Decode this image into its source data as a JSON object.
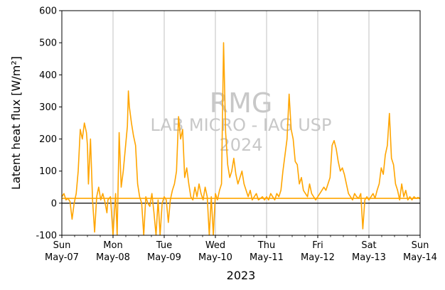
{
  "chart_data": {
    "type": "line",
    "ylabel": "Latent heat flux [W/m²]",
    "xlabel": "2023",
    "ylim": [
      -100,
      600
    ],
    "yticks": [
      -100,
      0,
      100,
      200,
      300,
      400,
      500,
      600
    ],
    "xlim": [
      0,
      7
    ],
    "x_unit": "days since 2023-05-07 00:00",
    "xticks": [
      {
        "day": "Sun",
        "date": "May-07"
      },
      {
        "day": "Mon",
        "date": "May-08"
      },
      {
        "day": "Tue",
        "date": "May-09"
      },
      {
        "day": "Wed",
        "date": "May-10"
      },
      {
        "day": "Thu",
        "date": "May-11"
      },
      {
        "day": "Fri",
        "date": "May-12"
      },
      {
        "day": "Sat",
        "date": "May-13"
      },
      {
        "day": "Sun",
        "date": "May-14"
      }
    ],
    "grid": "vertical major ticks",
    "zero_line": true,
    "watermark": {
      "line1": "RMG",
      "line2": "LAB MICRO - IAG USP",
      "line3": "2024"
    },
    "series": [
      {
        "name": "",
        "color": "#ffa500",
        "points": [
          [
            0.0,
            20
          ],
          [
            0.04,
            30
          ],
          [
            0.08,
            10
          ],
          [
            0.12,
            15
          ],
          [
            0.16,
            5
          ],
          [
            0.2,
            -50
          ],
          [
            0.24,
            0
          ],
          [
            0.28,
            30
          ],
          [
            0.32,
            100
          ],
          [
            0.36,
            230
          ],
          [
            0.4,
            200
          ],
          [
            0.44,
            250
          ],
          [
            0.48,
            220
          ],
          [
            0.5,
            180
          ],
          [
            0.52,
            60
          ],
          [
            0.56,
            200
          ],
          [
            0.6,
            10
          ],
          [
            0.64,
            -90
          ],
          [
            0.68,
            20
          ],
          [
            0.72,
            50
          ],
          [
            0.76,
            10
          ],
          [
            0.8,
            30
          ],
          [
            0.84,
            5
          ],
          [
            0.88,
            -30
          ],
          [
            0.9,
            10
          ],
          [
            0.95,
            20
          ],
          [
            1.0,
            -100
          ],
          [
            1.05,
            30
          ],
          [
            1.08,
            -100
          ],
          [
            1.12,
            220
          ],
          [
            1.16,
            50
          ],
          [
            1.2,
            100
          ],
          [
            1.24,
            170
          ],
          [
            1.28,
            240
          ],
          [
            1.3,
            350
          ],
          [
            1.32,
            300
          ],
          [
            1.36,
            250
          ],
          [
            1.4,
            210
          ],
          [
            1.44,
            180
          ],
          [
            1.48,
            60
          ],
          [
            1.52,
            20
          ],
          [
            1.56,
            0
          ],
          [
            1.6,
            -100
          ],
          [
            1.64,
            20
          ],
          [
            1.68,
            0
          ],
          [
            1.72,
            -10
          ],
          [
            1.76,
            30
          ],
          [
            1.8,
            -30
          ],
          [
            1.84,
            -100
          ],
          [
            1.88,
            10
          ],
          [
            1.92,
            -100
          ],
          [
            1.96,
            0
          ],
          [
            2.0,
            20
          ],
          [
            2.04,
            10
          ],
          [
            2.08,
            -60
          ],
          [
            2.12,
            10
          ],
          [
            2.16,
            40
          ],
          [
            2.2,
            60
          ],
          [
            2.24,
            100
          ],
          [
            2.28,
            270
          ],
          [
            2.32,
            200
          ],
          [
            2.36,
            230
          ],
          [
            2.4,
            80
          ],
          [
            2.44,
            110
          ],
          [
            2.48,
            60
          ],
          [
            2.52,
            20
          ],
          [
            2.56,
            10
          ],
          [
            2.6,
            50
          ],
          [
            2.64,
            20
          ],
          [
            2.68,
            60
          ],
          [
            2.72,
            30
          ],
          [
            2.76,
            10
          ],
          [
            2.8,
            50
          ],
          [
            2.84,
            20
          ],
          [
            2.88,
            -100
          ],
          [
            2.92,
            20
          ],
          [
            2.96,
            -100
          ],
          [
            3.0,
            30
          ],
          [
            3.04,
            10
          ],
          [
            3.08,
            40
          ],
          [
            3.12,
            60
          ],
          [
            3.16,
            500
          ],
          [
            3.2,
            220
          ],
          [
            3.24,
            120
          ],
          [
            3.28,
            80
          ],
          [
            3.32,
            100
          ],
          [
            3.36,
            140
          ],
          [
            3.4,
            90
          ],
          [
            3.44,
            60
          ],
          [
            3.48,
            80
          ],
          [
            3.52,
            100
          ],
          [
            3.56,
            60
          ],
          [
            3.6,
            40
          ],
          [
            3.64,
            20
          ],
          [
            3.68,
            40
          ],
          [
            3.72,
            10
          ],
          [
            3.76,
            20
          ],
          [
            3.8,
            30
          ],
          [
            3.84,
            10
          ],
          [
            3.88,
            15
          ],
          [
            3.92,
            20
          ],
          [
            3.96,
            10
          ],
          [
            4.0,
            20
          ],
          [
            4.04,
            10
          ],
          [
            4.08,
            30
          ],
          [
            4.12,
            20
          ],
          [
            4.16,
            10
          ],
          [
            4.2,
            30
          ],
          [
            4.24,
            20
          ],
          [
            4.28,
            40
          ],
          [
            4.32,
            100
          ],
          [
            4.36,
            150
          ],
          [
            4.4,
            200
          ],
          [
            4.44,
            340
          ],
          [
            4.48,
            230
          ],
          [
            4.52,
            200
          ],
          [
            4.56,
            130
          ],
          [
            4.6,
            120
          ],
          [
            4.64,
            60
          ],
          [
            4.68,
            80
          ],
          [
            4.72,
            40
          ],
          [
            4.76,
            30
          ],
          [
            4.8,
            20
          ],
          [
            4.84,
            60
          ],
          [
            4.88,
            30
          ],
          [
            4.92,
            20
          ],
          [
            4.96,
            10
          ],
          [
            5.0,
            20
          ],
          [
            5.04,
            30
          ],
          [
            5.08,
            40
          ],
          [
            5.12,
            50
          ],
          [
            5.16,
            40
          ],
          [
            5.2,
            60
          ],
          [
            5.24,
            80
          ],
          [
            5.28,
            180
          ],
          [
            5.32,
            195
          ],
          [
            5.36,
            170
          ],
          [
            5.4,
            130
          ],
          [
            5.44,
            100
          ],
          [
            5.48,
            110
          ],
          [
            5.52,
            90
          ],
          [
            5.56,
            60
          ],
          [
            5.6,
            30
          ],
          [
            5.64,
            20
          ],
          [
            5.68,
            10
          ],
          [
            5.72,
            30
          ],
          [
            5.76,
            20
          ],
          [
            5.8,
            15
          ],
          [
            5.84,
            30
          ],
          [
            5.88,
            -80
          ],
          [
            5.92,
            10
          ],
          [
            5.96,
            20
          ],
          [
            6.0,
            10
          ],
          [
            6.04,
            20
          ],
          [
            6.08,
            30
          ],
          [
            6.12,
            15
          ],
          [
            6.16,
            40
          ],
          [
            6.2,
            60
          ],
          [
            6.24,
            110
          ],
          [
            6.28,
            90
          ],
          [
            6.32,
            150
          ],
          [
            6.36,
            180
          ],
          [
            6.4,
            280
          ],
          [
            6.44,
            140
          ],
          [
            6.48,
            120
          ],
          [
            6.52,
            60
          ],
          [
            6.56,
            40
          ],
          [
            6.6,
            10
          ],
          [
            6.64,
            60
          ],
          [
            6.68,
            20
          ],
          [
            6.72,
            40
          ],
          [
            6.76,
            10
          ],
          [
            6.8,
            20
          ],
          [
            6.84,
            10
          ],
          [
            6.88,
            20
          ],
          [
            6.92,
            15
          ],
          [
            6.96,
            18
          ],
          [
            7.0,
            15
          ]
        ]
      }
    ]
  }
}
